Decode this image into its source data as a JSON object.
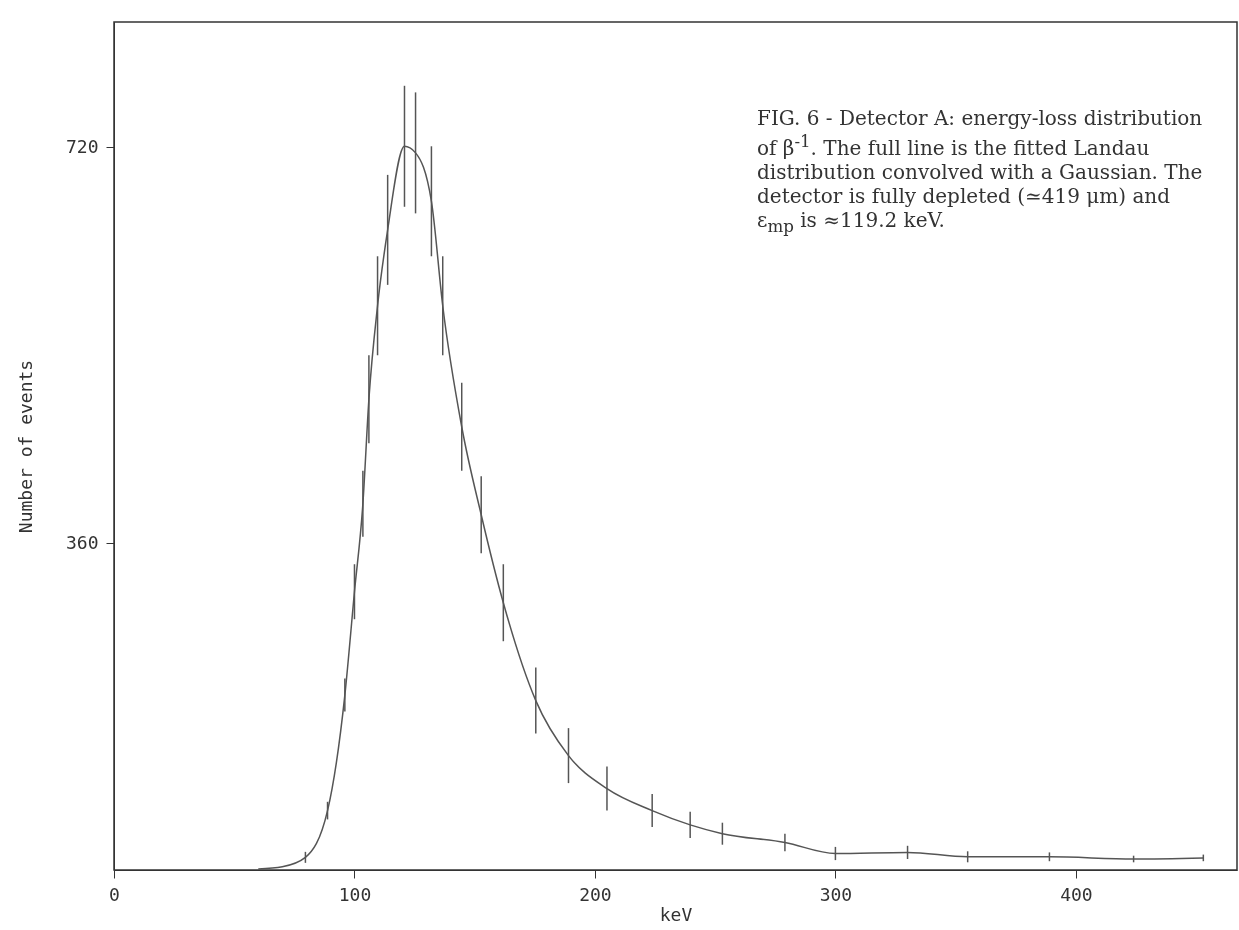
{
  "chart_data": {
    "type": "line",
    "xlabel": "keV",
    "ylabel": "Number of events",
    "annotations": [
      "FIG. 6 - Detector A: energy-loss distribution of β$^{-1}$. The full line is the fitted Landau distribution convolved with a Gaussian. The detector is fully depleted (≃419 μm) and ε$_{mp}$ is ≈119.2 keV."
    ],
    "x": [
      60,
      70,
      79.6,
      88.8,
      96,
      100,
      103.5,
      106,
      109.6,
      113.8,
      120.8,
      125.4,
      132,
      136.7,
      144.6,
      152.7,
      161.9,
      175.4,
      189,
      205,
      223.8,
      239.6,
      253,
      279,
      300,
      330,
      355,
      389,
      424,
      453
    ],
    "series": [
      {
        "color": "#555555",
        "line_style": "solid",
        "marker": "none",
        "values": [
          64,
          66,
          74.5,
          117,
          222,
          316,
          396,
          491,
          576,
          645,
          721,
          715,
          671,
          576,
          466,
          386,
          306,
          217,
          167,
          137,
          117,
          104,
          96,
          88,
          78,
          79,
          75,
          75,
          73,
          74
        ],
        "errors": [
          null,
          null,
          5,
          8,
          15,
          25,
          30,
          40,
          45,
          50,
          55,
          55,
          50,
          45,
          40,
          35,
          35,
          30,
          25,
          20,
          15,
          12,
          10,
          8,
          6,
          6,
          5,
          4,
          3,
          3
        ]
      }
    ],
    "xlim": [
      0,
      467
    ],
    "xticks": [
      0,
      100,
      200,
      300,
      400
    ],
    "ylim": [
      63,
      834
    ],
    "yticks": [
      360,
      720
    ]
  }
}
